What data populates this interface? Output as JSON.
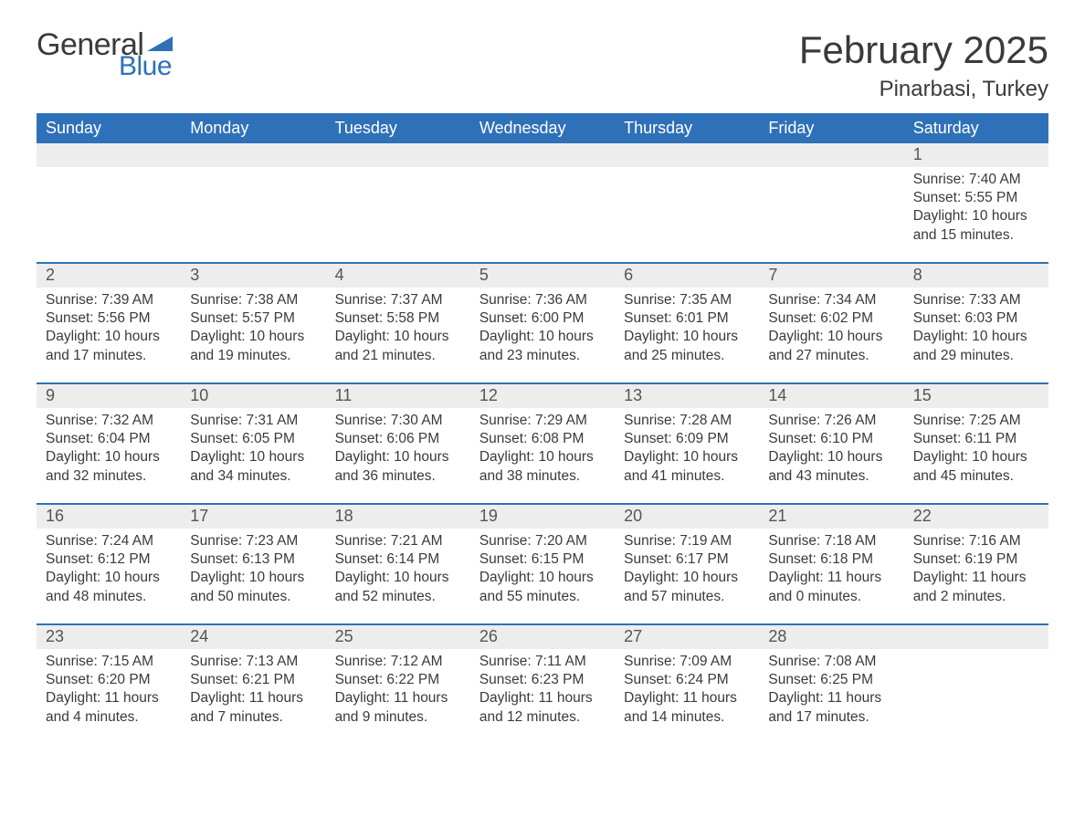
{
  "logo": {
    "text_general": "General",
    "text_blue": "Blue",
    "flag_color": "#2f71b8"
  },
  "header": {
    "month_title": "February 2025",
    "location": "Pinarbasi, Turkey"
  },
  "colors": {
    "header_bg": "#2f71b8",
    "header_text": "#ffffff",
    "daynum_bg": "#ededed",
    "row_border": "#2f71b8",
    "body_text": "#3a3a3a",
    "background": "#ffffff"
  },
  "layout": {
    "columns": 7,
    "start_day_index": 6
  },
  "weekdays": [
    "Sunday",
    "Monday",
    "Tuesday",
    "Wednesday",
    "Thursday",
    "Friday",
    "Saturday"
  ],
  "weeks": [
    [
      null,
      null,
      null,
      null,
      null,
      null,
      {
        "n": "1",
        "sunrise": "Sunrise: 7:40 AM",
        "sunset": "Sunset: 5:55 PM",
        "day1": "Daylight: 10 hours",
        "day2": "and 15 minutes."
      }
    ],
    [
      {
        "n": "2",
        "sunrise": "Sunrise: 7:39 AM",
        "sunset": "Sunset: 5:56 PM",
        "day1": "Daylight: 10 hours",
        "day2": "and 17 minutes."
      },
      {
        "n": "3",
        "sunrise": "Sunrise: 7:38 AM",
        "sunset": "Sunset: 5:57 PM",
        "day1": "Daylight: 10 hours",
        "day2": "and 19 minutes."
      },
      {
        "n": "4",
        "sunrise": "Sunrise: 7:37 AM",
        "sunset": "Sunset: 5:58 PM",
        "day1": "Daylight: 10 hours",
        "day2": "and 21 minutes."
      },
      {
        "n": "5",
        "sunrise": "Sunrise: 7:36 AM",
        "sunset": "Sunset: 6:00 PM",
        "day1": "Daylight: 10 hours",
        "day2": "and 23 minutes."
      },
      {
        "n": "6",
        "sunrise": "Sunrise: 7:35 AM",
        "sunset": "Sunset: 6:01 PM",
        "day1": "Daylight: 10 hours",
        "day2": "and 25 minutes."
      },
      {
        "n": "7",
        "sunrise": "Sunrise: 7:34 AM",
        "sunset": "Sunset: 6:02 PM",
        "day1": "Daylight: 10 hours",
        "day2": "and 27 minutes."
      },
      {
        "n": "8",
        "sunrise": "Sunrise: 7:33 AM",
        "sunset": "Sunset: 6:03 PM",
        "day1": "Daylight: 10 hours",
        "day2": "and 29 minutes."
      }
    ],
    [
      {
        "n": "9",
        "sunrise": "Sunrise: 7:32 AM",
        "sunset": "Sunset: 6:04 PM",
        "day1": "Daylight: 10 hours",
        "day2": "and 32 minutes."
      },
      {
        "n": "10",
        "sunrise": "Sunrise: 7:31 AM",
        "sunset": "Sunset: 6:05 PM",
        "day1": "Daylight: 10 hours",
        "day2": "and 34 minutes."
      },
      {
        "n": "11",
        "sunrise": "Sunrise: 7:30 AM",
        "sunset": "Sunset: 6:06 PM",
        "day1": "Daylight: 10 hours",
        "day2": "and 36 minutes."
      },
      {
        "n": "12",
        "sunrise": "Sunrise: 7:29 AM",
        "sunset": "Sunset: 6:08 PM",
        "day1": "Daylight: 10 hours",
        "day2": "and 38 minutes."
      },
      {
        "n": "13",
        "sunrise": "Sunrise: 7:28 AM",
        "sunset": "Sunset: 6:09 PM",
        "day1": "Daylight: 10 hours",
        "day2": "and 41 minutes."
      },
      {
        "n": "14",
        "sunrise": "Sunrise: 7:26 AM",
        "sunset": "Sunset: 6:10 PM",
        "day1": "Daylight: 10 hours",
        "day2": "and 43 minutes."
      },
      {
        "n": "15",
        "sunrise": "Sunrise: 7:25 AM",
        "sunset": "Sunset: 6:11 PM",
        "day1": "Daylight: 10 hours",
        "day2": "and 45 minutes."
      }
    ],
    [
      {
        "n": "16",
        "sunrise": "Sunrise: 7:24 AM",
        "sunset": "Sunset: 6:12 PM",
        "day1": "Daylight: 10 hours",
        "day2": "and 48 minutes."
      },
      {
        "n": "17",
        "sunrise": "Sunrise: 7:23 AM",
        "sunset": "Sunset: 6:13 PM",
        "day1": "Daylight: 10 hours",
        "day2": "and 50 minutes."
      },
      {
        "n": "18",
        "sunrise": "Sunrise: 7:21 AM",
        "sunset": "Sunset: 6:14 PM",
        "day1": "Daylight: 10 hours",
        "day2": "and 52 minutes."
      },
      {
        "n": "19",
        "sunrise": "Sunrise: 7:20 AM",
        "sunset": "Sunset: 6:15 PM",
        "day1": "Daylight: 10 hours",
        "day2": "and 55 minutes."
      },
      {
        "n": "20",
        "sunrise": "Sunrise: 7:19 AM",
        "sunset": "Sunset: 6:17 PM",
        "day1": "Daylight: 10 hours",
        "day2": "and 57 minutes."
      },
      {
        "n": "21",
        "sunrise": "Sunrise: 7:18 AM",
        "sunset": "Sunset: 6:18 PM",
        "day1": "Daylight: 11 hours",
        "day2": "and 0 minutes."
      },
      {
        "n": "22",
        "sunrise": "Sunrise: 7:16 AM",
        "sunset": "Sunset: 6:19 PM",
        "day1": "Daylight: 11 hours",
        "day2": "and 2 minutes."
      }
    ],
    [
      {
        "n": "23",
        "sunrise": "Sunrise: 7:15 AM",
        "sunset": "Sunset: 6:20 PM",
        "day1": "Daylight: 11 hours",
        "day2": "and 4 minutes."
      },
      {
        "n": "24",
        "sunrise": "Sunrise: 7:13 AM",
        "sunset": "Sunset: 6:21 PM",
        "day1": "Daylight: 11 hours",
        "day2": "and 7 minutes."
      },
      {
        "n": "25",
        "sunrise": "Sunrise: 7:12 AM",
        "sunset": "Sunset: 6:22 PM",
        "day1": "Daylight: 11 hours",
        "day2": "and 9 minutes."
      },
      {
        "n": "26",
        "sunrise": "Sunrise: 7:11 AM",
        "sunset": "Sunset: 6:23 PM",
        "day1": "Daylight: 11 hours",
        "day2": "and 12 minutes."
      },
      {
        "n": "27",
        "sunrise": "Sunrise: 7:09 AM",
        "sunset": "Sunset: 6:24 PM",
        "day1": "Daylight: 11 hours",
        "day2": "and 14 minutes."
      },
      {
        "n": "28",
        "sunrise": "Sunrise: 7:08 AM",
        "sunset": "Sunset: 6:25 PM",
        "day1": "Daylight: 11 hours",
        "day2": "and 17 minutes."
      },
      null
    ]
  ]
}
